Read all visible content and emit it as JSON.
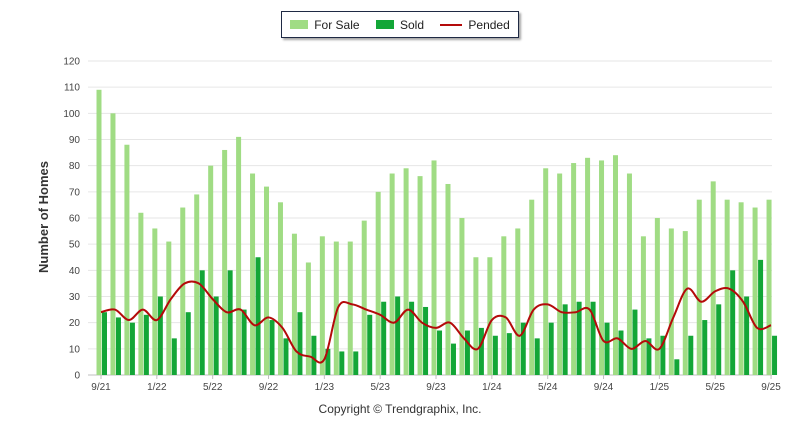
{
  "legend": {
    "for_sale": "For Sale",
    "sold": "Sold",
    "pended": "Pended"
  },
  "footer": "Copyright © Trendgraphix, Inc.",
  "colors": {
    "for_sale": "#a0dc84",
    "sold": "#13a637",
    "pended": "#b40a0a",
    "grid": "#e6e6e6",
    "axis": "#bfbfbf"
  },
  "chart_data": {
    "type": "bar",
    "title": "",
    "xlabel": "",
    "ylabel": "Number of Homes",
    "ylim": [
      0,
      120
    ],
    "yticks": [
      0,
      10,
      20,
      30,
      40,
      50,
      60,
      70,
      80,
      90,
      100,
      110,
      120
    ],
    "grid": true,
    "legend_position": "top",
    "x_tick_labels": [
      {
        "index": 0,
        "label": "9/21"
      },
      {
        "index": 4,
        "label": "1/22"
      },
      {
        "index": 8,
        "label": "5/22"
      },
      {
        "index": 12,
        "label": "9/22"
      },
      {
        "index": 16,
        "label": "1/23"
      },
      {
        "index": 20,
        "label": "5/23"
      },
      {
        "index": 24,
        "label": "9/23"
      },
      {
        "index": 28,
        "label": "1/24"
      },
      {
        "index": 32,
        "label": "5/24"
      },
      {
        "index": 36,
        "label": "9/24"
      },
      {
        "index": 40,
        "label": "1/25"
      },
      {
        "index": 44,
        "label": "5/25"
      },
      {
        "index": 48,
        "label": "9/25"
      }
    ],
    "series": [
      {
        "name": "For Sale",
        "type": "bar",
        "values": [
          109,
          100,
          88,
          62,
          56,
          51,
          64,
          69,
          80,
          86,
          91,
          77,
          72,
          66,
          54,
          43,
          53,
          51,
          51,
          59,
          70,
          77,
          79,
          76,
          82,
          73,
          60,
          45,
          45,
          53,
          56,
          67,
          79,
          77,
          81,
          83,
          82,
          84,
          77,
          53,
          60,
          56,
          55,
          67,
          74,
          67,
          66,
          64,
          67
        ]
      },
      {
        "name": "Sold",
        "type": "bar",
        "values": [
          24,
          22,
          20,
          23,
          30,
          14,
          24,
          40,
          30,
          40,
          25,
          45,
          21,
          14,
          24,
          15,
          10,
          9,
          9,
          23,
          28,
          30,
          28,
          26,
          17,
          12,
          17,
          18,
          15,
          16,
          20,
          14,
          20,
          27,
          28,
          28,
          20,
          17,
          25,
          14,
          15,
          6,
          15,
          21,
          27,
          40,
          30,
          44,
          15
        ]
      },
      {
        "name": "Pended",
        "type": "line",
        "values": [
          24,
          25,
          21,
          25,
          21,
          29,
          35,
          35,
          29,
          24,
          25,
          19,
          22,
          18,
          9,
          7,
          6,
          26,
          27,
          25,
          23,
          20,
          25,
          20,
          18,
          20,
          14,
          10,
          21,
          22,
          15,
          25,
          27,
          24,
          24,
          25,
          13,
          14,
          10,
          13,
          10,
          22,
          33,
          28,
          32,
          33,
          28,
          18,
          19
        ]
      }
    ]
  }
}
